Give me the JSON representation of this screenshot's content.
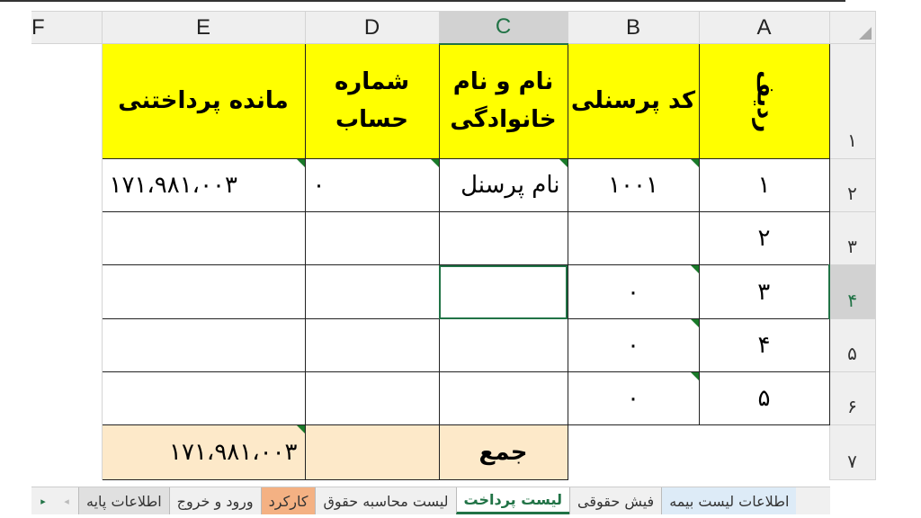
{
  "columns": [
    "F",
    "E",
    "D",
    "C",
    "B",
    "A"
  ],
  "rows": [
    "۱",
    "۲",
    "۳",
    "۴",
    "۵",
    "۶",
    "۷"
  ],
  "headers": {
    "A": "ردیف",
    "B": "کد پرسنلی",
    "C": "نام و نام خانوادگی",
    "D": "شماره حساب",
    "E": "مانده پرداختنی"
  },
  "data": [
    {
      "A": "۱",
      "B": "۱۰۰۱",
      "C": "نام پرسنل",
      "D": "۰",
      "E": "۱۷۱،۹۸۱،۰۰۳"
    },
    {
      "A": "۲",
      "B": "",
      "C": "",
      "D": "",
      "E": ""
    },
    {
      "A": "۳",
      "B": "۰",
      "C": "",
      "D": "",
      "E": ""
    },
    {
      "A": "۴",
      "B": "۰",
      "C": "",
      "D": "",
      "E": ""
    },
    {
      "A": "۵",
      "B": "۰",
      "C": "",
      "D": "",
      "E": ""
    }
  ],
  "totals": {
    "label": "جمع",
    "D": "",
    "E": "۱۷۱،۹۸۱،۰۰۳"
  },
  "active_cell": "C4",
  "sheet_tabs": [
    {
      "label": "اطلاعات پایه",
      "style": "gray"
    },
    {
      "label": "ورود و خروج",
      "style": "normal"
    },
    {
      "label": "کارکرد",
      "style": "orange"
    },
    {
      "label": "لیست محاسبه حقوق",
      "style": "normal"
    },
    {
      "label": "لیست پرداخت",
      "style": "active"
    },
    {
      "label": "فیش حقوقی",
      "style": "normal"
    },
    {
      "label": "اطلاعات لیست بیمه",
      "style": "blue"
    }
  ],
  "colors": {
    "header_fill": "#ffff00",
    "total_fill": "#fde9c9",
    "accent": "#217346",
    "tab_orange": "#f4b183"
  }
}
